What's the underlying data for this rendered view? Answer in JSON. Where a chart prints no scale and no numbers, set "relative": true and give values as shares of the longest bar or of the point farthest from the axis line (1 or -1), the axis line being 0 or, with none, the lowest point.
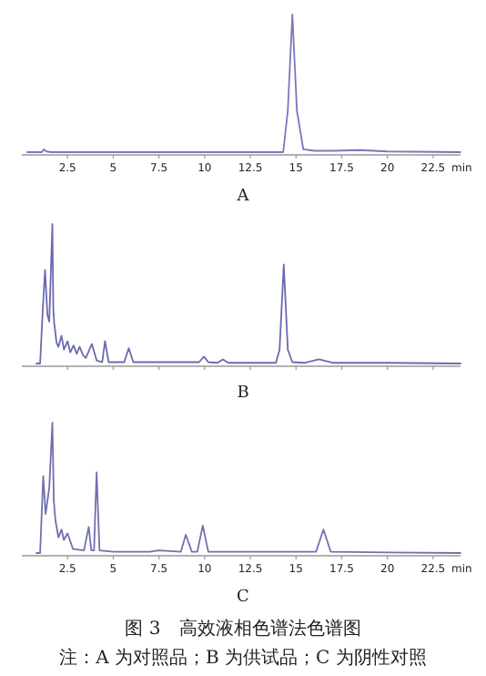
{
  "chart_data": [
    {
      "type": "line",
      "title": "A",
      "xlabel": "min",
      "relative": true,
      "color": "#7878b8",
      "xlim": [
        0,
        24
      ],
      "xticks": [
        2.5,
        5,
        7.5,
        10,
        12.5,
        15,
        17.5,
        20,
        22.5
      ],
      "x": [
        0.3,
        1.1,
        1.2,
        1.35,
        1.6,
        14.3,
        14.55,
        14.8,
        15.05,
        15.4,
        16,
        17,
        18.5,
        20,
        24
      ],
      "values": [
        0,
        0,
        0.02,
        0.005,
        0,
        0,
        0.3,
        1,
        0.3,
        0.02,
        0.01,
        0.01,
        0.015,
        0.005,
        0
      ]
    },
    {
      "type": "line",
      "title": "B",
      "relative": true,
      "color": "#6a6ab0",
      "xlim": [
        0,
        24
      ],
      "xticks": [
        2.5,
        5,
        7.5,
        10,
        12.5,
        15,
        17.5,
        20,
        22.5
      ],
      "tick_labels": false,
      "x": [
        0.8,
        1.0,
        1.15,
        1.27,
        1.4,
        1.5,
        1.67,
        1.72,
        1.77,
        1.9,
        2.0,
        2.17,
        2.3,
        2.5,
        2.65,
        2.83,
        3.0,
        3.16,
        3.35,
        3.5,
        3.83,
        4.1,
        4.4,
        4.55,
        4.75,
        5.6,
        5.85,
        6.1,
        7,
        8,
        9.7,
        9.96,
        10.2,
        10.7,
        11.0,
        11.3,
        13.9,
        14.1,
        14.33,
        14.55,
        14.8,
        15.5,
        16.25,
        17,
        20,
        24
      ],
      "values": [
        0,
        0,
        0.4,
        0.67,
        0.35,
        0.3,
        1,
        0.4,
        0.29,
        0.15,
        0.12,
        0.2,
        0.1,
        0.16,
        0.08,
        0.13,
        0.07,
        0.12,
        0.06,
        0.04,
        0.14,
        0.02,
        0.01,
        0.16,
        0.01,
        0.01,
        0.11,
        0.01,
        0.01,
        0.01,
        0.01,
        0.05,
        0.01,
        0.005,
        0.03,
        0.005,
        0.005,
        0.1,
        0.71,
        0.1,
        0.01,
        0.005,
        0.03,
        0.005,
        0.005,
        0
      ]
    },
    {
      "type": "line",
      "title": "C",
      "xlabel": "min",
      "relative": true,
      "color": "#7070b0",
      "xlim": [
        0,
        24
      ],
      "xticks": [
        2.5,
        5,
        7.5,
        10,
        12.5,
        15,
        17.5,
        20,
        22.5
      ],
      "x": [
        0.8,
        1.0,
        1.17,
        1.3,
        1.5,
        1.67,
        1.75,
        1.84,
        2.0,
        2.17,
        2.3,
        2.5,
        2.8,
        3.4,
        3.66,
        3.8,
        3.95,
        4.09,
        4.25,
        5,
        7,
        7.5,
        8.7,
        8.97,
        9.3,
        9.6,
        9.9,
        10.2,
        11,
        16.1,
        16.5,
        16.9,
        20,
        24
      ],
      "values": [
        0,
        0,
        0.59,
        0.3,
        0.5,
        1,
        0.4,
        0.25,
        0.12,
        0.18,
        0.1,
        0.15,
        0.03,
        0.02,
        0.2,
        0.02,
        0.02,
        0.62,
        0.02,
        0.01,
        0.01,
        0.02,
        0.01,
        0.14,
        0.01,
        0.01,
        0.21,
        0.01,
        0.01,
        0.01,
        0.18,
        0.01,
        0.005,
        0
      ],
      "annotations": [
        "图 3　高效液相色谱法色谱图",
        "注：A 为对照品；B 为供试品；C 为阴性对照"
      ]
    }
  ]
}
